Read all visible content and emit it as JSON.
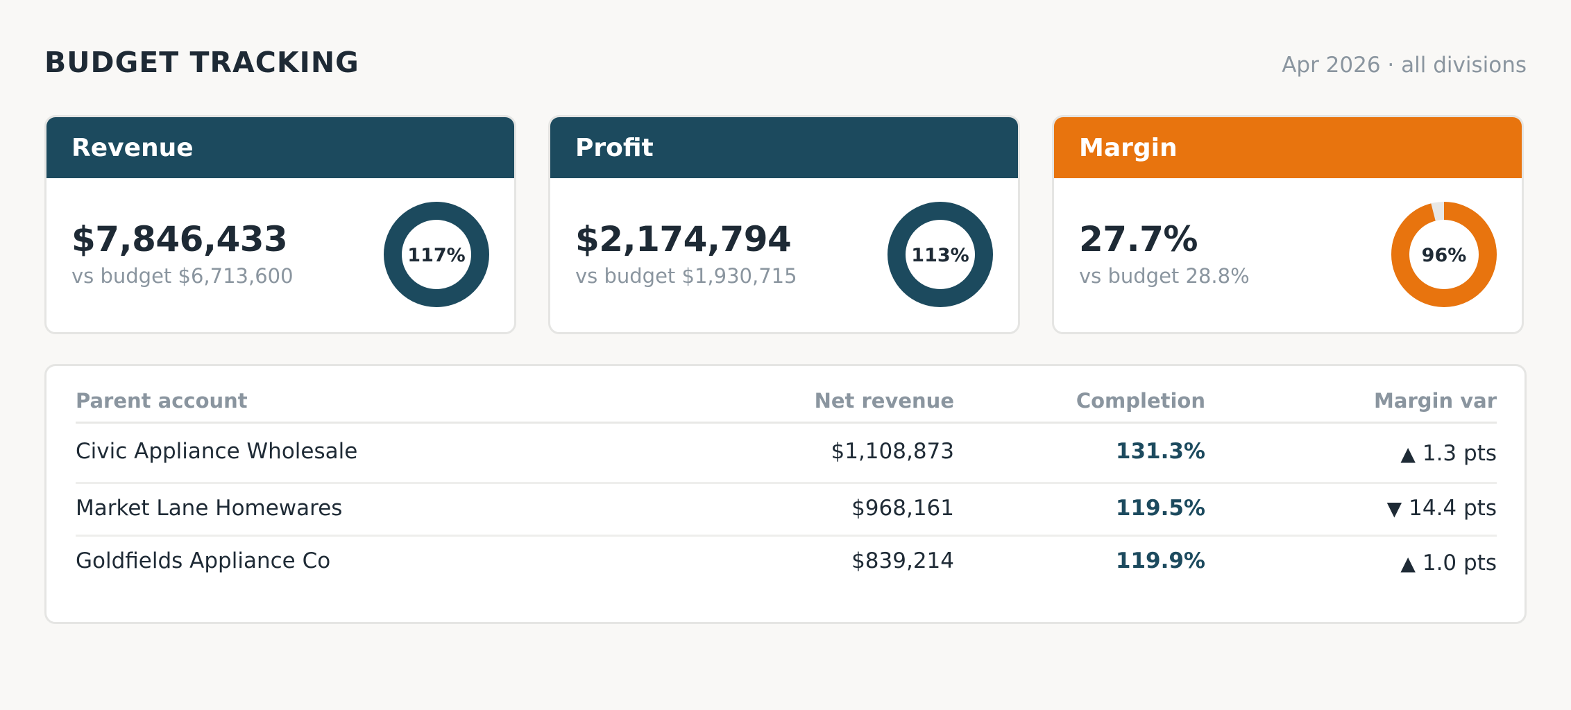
{
  "header": {
    "title": "BUDGET TRACKING",
    "subtitle": "Apr 2026 · all divisions"
  },
  "colors": {
    "primary": "#1c4a5e",
    "accent": "#e8740e",
    "track": "#e8e8e6"
  },
  "kpis": [
    {
      "title": "Revenue",
      "value": "$7,846,433",
      "budget": "vs budget $6,713,600",
      "pct_label": "117%",
      "progress": 1.0,
      "color": "#1c4a5e"
    },
    {
      "title": "Profit",
      "value": "$2,174,794",
      "budget": "vs budget $1,930,715",
      "pct_label": "113%",
      "progress": 1.0,
      "color": "#1c4a5e"
    },
    {
      "title": "Margin",
      "value": "27.7%",
      "budget": "vs budget 28.8%",
      "pct_label": "96%",
      "progress": 0.96,
      "color": "#e8740e"
    }
  ],
  "table": {
    "columns": [
      "Parent account",
      "Net revenue",
      "Completion",
      "Margin var"
    ],
    "rows": [
      {
        "account": "Civic Appliance Wholesale",
        "net_revenue": "$1,108,873",
        "completion": "131.3%",
        "var_icon": "triangle-up-icon",
        "var_arrow": "▲",
        "var": "1.3 pts"
      },
      {
        "account": "Market Lane Homewares",
        "net_revenue": "$968,161",
        "completion": "119.5%",
        "var_icon": "triangle-down-icon",
        "var_arrow": "▼",
        "var": "14.4 pts"
      },
      {
        "account": "Goldfields Appliance Co",
        "net_revenue": "$839,214",
        "completion": "119.9%",
        "var_icon": "triangle-up-icon",
        "var_arrow": "▲",
        "var": "1.0 pts"
      }
    ]
  }
}
